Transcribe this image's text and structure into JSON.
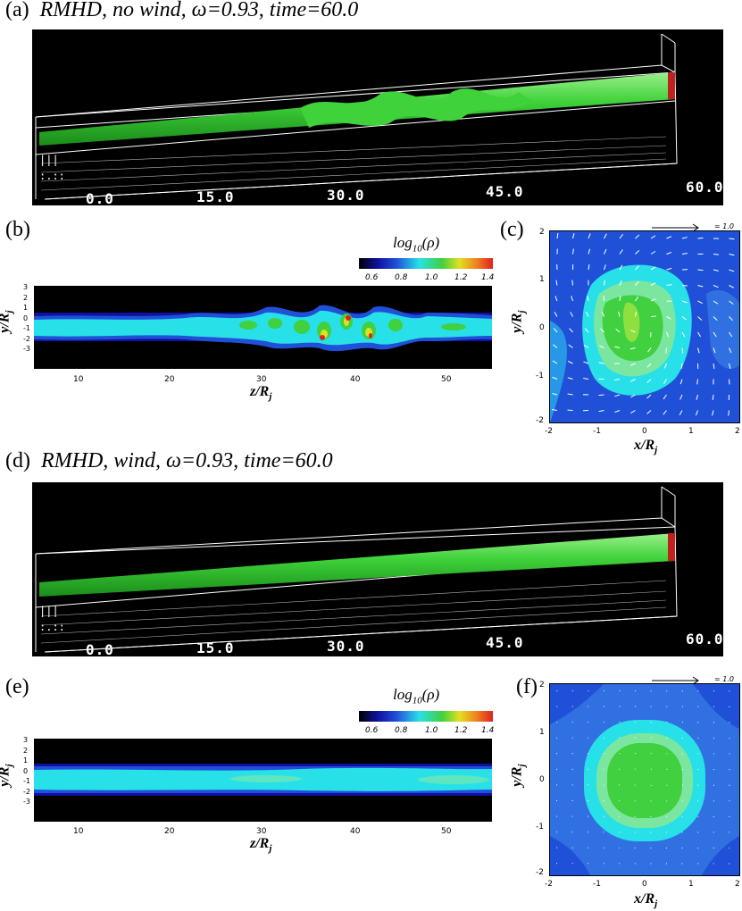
{
  "panels": {
    "a": {
      "label": "(a)",
      "title": "RMHD, no wind, ω=0.93, time=60.0"
    },
    "b": {
      "label": "(b)"
    },
    "c": {
      "label": "(c)"
    },
    "d": {
      "label": "(d)",
      "title": "RMHD, wind, ω=0.93, time=60.0"
    },
    "e": {
      "label": "(e)"
    },
    "f": {
      "label": "(f)"
    }
  },
  "view3d_ticks": [
    "0.0",
    "15.0",
    "30.0",
    "45.0",
    "60.0"
  ],
  "slice": {
    "colorbar_title": "log10(ρ)",
    "colorbar_ticks": [
      "0.6",
      "0.8",
      "1.0",
      "1.2",
      "1.4"
    ],
    "xlabel": "z/Rj",
    "ylabel": "y/Rj",
    "xticks": [
      "10",
      "20",
      "30",
      "40",
      "50"
    ],
    "yticks": [
      "3",
      "2",
      "1",
      "0",
      "-1",
      "-2",
      "-3"
    ]
  },
  "cross": {
    "xlabel": "x/Rj",
    "ylabel": "y/Rj",
    "ticks": [
      "-2",
      "-1",
      "0",
      "1",
      "2"
    ],
    "vector_key": "= 1.0"
  },
  "colors": {
    "jet_green": "#3fd23a",
    "bg_blue": "#2050d8",
    "cyan": "#28e0e8"
  }
}
